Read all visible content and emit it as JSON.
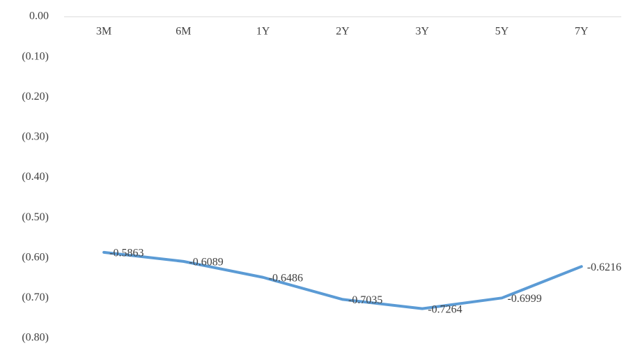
{
  "chart_data": {
    "type": "line",
    "categories": [
      "3M",
      "6M",
      "1Y",
      "2Y",
      "3Y",
      "5Y",
      "7Y"
    ],
    "series": [
      {
        "color": "#5b9bd5",
        "values": [
          -0.5863,
          -0.6089,
          -0.6486,
          -0.7035,
          -0.7264,
          -0.6999,
          -0.6216
        ]
      }
    ],
    "ylim": [
      -0.8,
      0
    ],
    "yticks": [
      {
        "value": 0,
        "label": "0.00"
      },
      {
        "value": -0.1,
        "label": "(0.10)"
      },
      {
        "value": -0.2,
        "label": "(0.20)"
      },
      {
        "value": -0.3,
        "label": "(0.30)"
      },
      {
        "value": -0.4,
        "label": "(0.40)"
      },
      {
        "value": -0.5,
        "label": "(0.50)"
      },
      {
        "value": -0.6,
        "label": "(0.60)"
      },
      {
        "value": -0.7,
        "label": "(0.70)"
      },
      {
        "value": -0.8,
        "label": "(0.80)"
      }
    ],
    "negative_tick_color": "#c00000",
    "tick_color": "#404040",
    "data_labels": true
  }
}
